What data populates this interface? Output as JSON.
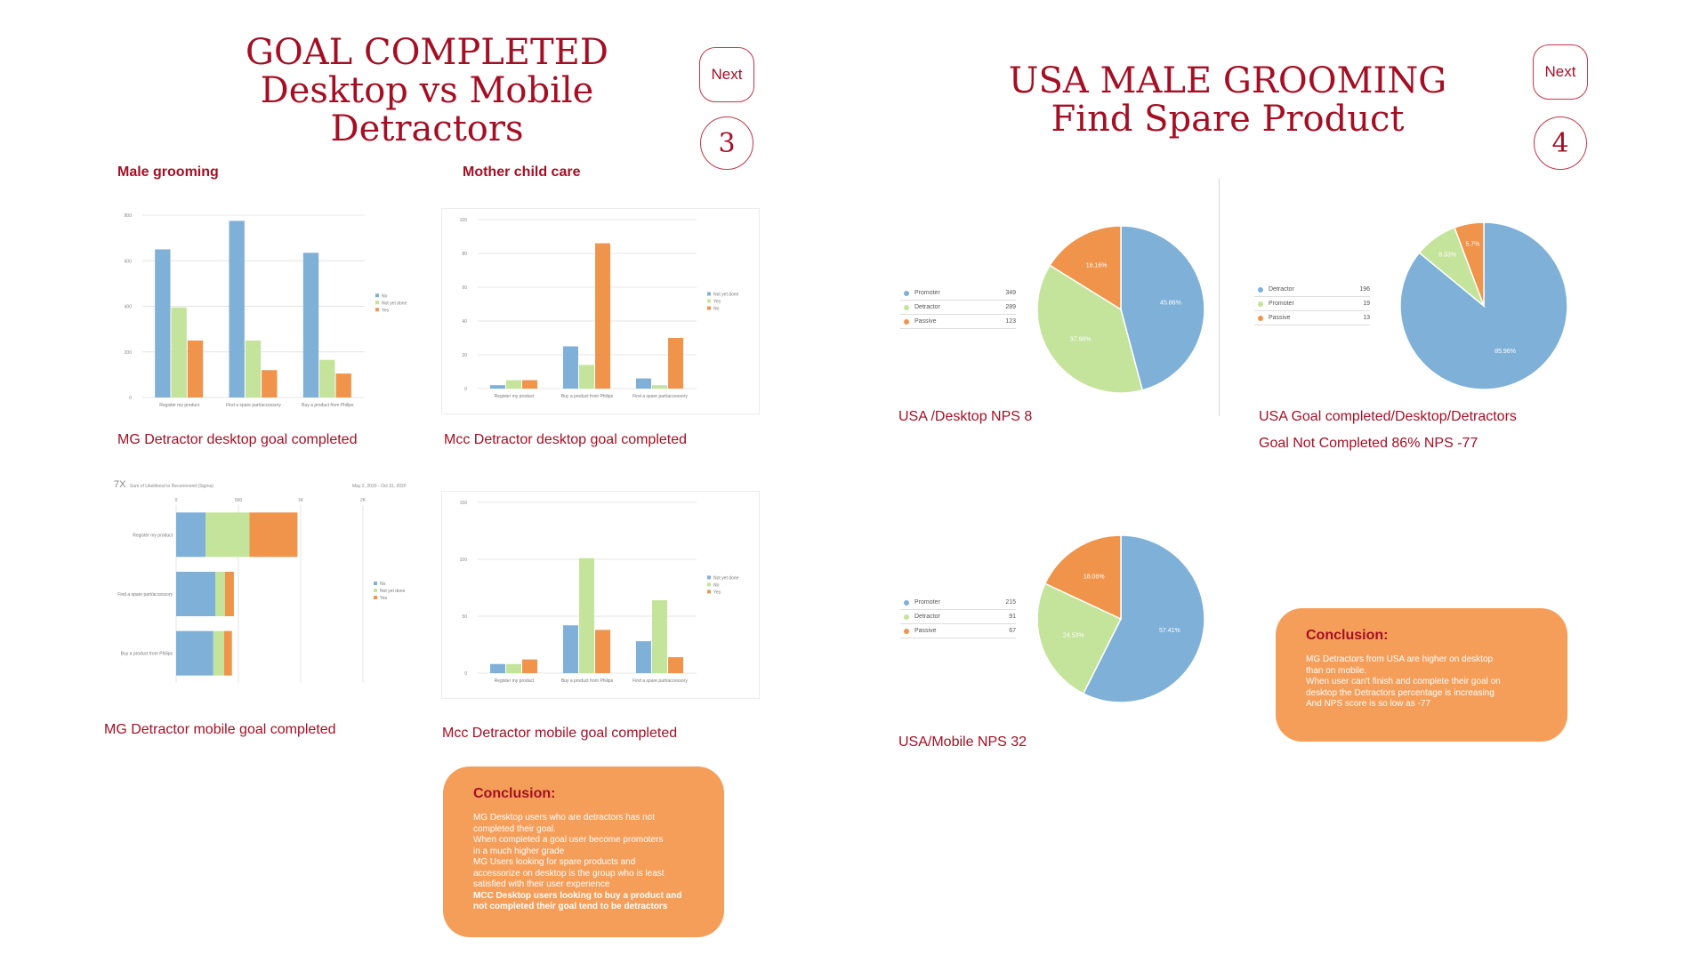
{
  "colors": {
    "blue": "#7fb0d8",
    "green": "#c4e39b",
    "orange": "#f0944b",
    "accent": "#a50f24"
  },
  "left_slide": {
    "title_lines": [
      "GOAL COMPLETED",
      "Desktop vs Mobile",
      "Detractors"
    ],
    "next_label": "Next",
    "page_number": "3",
    "section_male": "Male grooming",
    "section_mcc": "Mother child care",
    "conclusion": {
      "title": "Conclusion:",
      "lines": [
        "MG Desktop users who are detractors has not",
        "completed their goal.",
        "When completed a goal user become promoters",
        "in a much higher grade",
        "MG Users looking for spare products and",
        "accessorize on desktop is the group who is least",
        "satisfied with their user experience"
      ],
      "bold_lines": [
        "MCC Desktop users looking to buy a product and",
        "not completed their goal tend to be detractors"
      ]
    }
  },
  "right_slide": {
    "title_lines": [
      "USA MALE GROOMING",
      "Find Spare Product"
    ],
    "next_label": "Next",
    "page_number": "4",
    "conclusion": {
      "title": "Conclusion:",
      "lines": [
        "MG Detractors from USA are higher on desktop",
        "than on mobile.",
        "When user can't finish and complete their goal on",
        "desktop the Detractors  percentage is  increasing",
        "And NPS score is so low as -77"
      ]
    }
  },
  "chart_data": [
    {
      "type": "bar",
      "caption": "MG Detractor desktop goal completed",
      "categories": [
        "Register my product",
        "Find a spare part/accessory",
        "Buy a product from Philips"
      ],
      "series": [
        {
          "name": "No",
          "values": [
            650,
            775,
            635
          ]
        },
        {
          "name": "Not yet done",
          "values": [
            395,
            250,
            165
          ]
        },
        {
          "name": "Yes",
          "values": [
            250,
            120,
            105
          ]
        }
      ],
      "ylim": [
        0,
        800
      ],
      "yticks": [
        "0",
        "200",
        "400",
        "600",
        "800"
      ]
    },
    {
      "type": "bar",
      "caption": "Mcc Detractor desktop goal completed",
      "categories": [
        "Register my product",
        "Buy a product from Philips",
        "Find a spare part/accessory"
      ],
      "series": [
        {
          "name": "Not yet done",
          "values": [
            2,
            25,
            6
          ]
        },
        {
          "name": "Yes",
          "values": [
            5,
            14,
            2
          ]
        },
        {
          "name": "No",
          "values": [
            5,
            86,
            30
          ]
        }
      ],
      "ylim": [
        0,
        100
      ],
      "yticks": [
        "0",
        "20",
        "40",
        "60",
        "80",
        "100"
      ]
    },
    {
      "type": "bar-horizontal-stacked",
      "caption": "MG Detractor mobile goal completed",
      "header_left": "Sum of Likelihood to Recommend (Sigma)",
      "header_right": "May 2, 2020 - Oct 31, 2020",
      "categories": [
        "Register my product",
        "Find a spare part/accessory",
        "Buy a product from Philips"
      ],
      "series": [
        {
          "name": "No",
          "values": [
            3,
            4,
            3.8
          ]
        },
        {
          "name": "Not yet done",
          "values": [
            4.5,
            1,
            1.1
          ]
        },
        {
          "name": "Yes",
          "values": [
            4.9,
            0.9,
            0.8
          ]
        }
      ],
      "xlim": [
        0,
        2000
      ],
      "xticks": [
        "0",
        "500",
        "1K",
        "2K"
      ]
    },
    {
      "type": "bar",
      "caption": "Mcc Detractor mobile goal completed",
      "categories": [
        "Register my product",
        "Buy a product from Philips",
        "Find a spare part/accessory"
      ],
      "series": [
        {
          "name": "Not yet done",
          "values": [
            8,
            42,
            28
          ]
        },
        {
          "name": "No",
          "values": [
            8,
            101,
            64
          ]
        },
        {
          "name": "Yes",
          "values": [
            12,
            38,
            14
          ]
        }
      ],
      "ylim": [
        0,
        150
      ],
      "yticks": [
        "0",
        "50",
        "100",
        "150"
      ]
    },
    {
      "type": "pie",
      "caption": "USA /Desktop NPS  8",
      "legend": [
        {
          "name": "Promoter",
          "value": "349"
        },
        {
          "name": "Detractor",
          "value": "289"
        },
        {
          "name": "Passive",
          "value": "123"
        }
      ],
      "slices": [
        {
          "label": "45.86%",
          "value": 45.86,
          "color": "#7fb0d8"
        },
        {
          "label": "37.98%",
          "value": 37.98,
          "color": "#c4e39b"
        },
        {
          "label": "16.16%",
          "value": 16.16,
          "color": "#f0944b"
        }
      ]
    },
    {
      "type": "pie",
      "caption": "USA Goal completed/Desktop/Detractors",
      "caption2": "Goal Not Completed  86% NPS   -77",
      "legend": [
        {
          "name": "Detractor",
          "value": "196"
        },
        {
          "name": "Promoter",
          "value": "19"
        },
        {
          "name": "Passive",
          "value": "13"
        }
      ],
      "slices": [
        {
          "label": "85.96%",
          "value": 85.96,
          "color": "#7fb0d8"
        },
        {
          "label": "8.33%",
          "value": 8.33,
          "color": "#c4e39b"
        },
        {
          "label": "5.7%",
          "value": 5.7,
          "color": "#f0944b"
        }
      ]
    },
    {
      "type": "pie",
      "caption": "USA/Mobile  NPS 32",
      "legend": [
        {
          "name": "Promoter",
          "value": "215"
        },
        {
          "name": "Detractor",
          "value": "91"
        },
        {
          "name": "Passive",
          "value": "67"
        }
      ],
      "slices": [
        {
          "label": "57.41%",
          "value": 57.41,
          "color": "#7fb0d8"
        },
        {
          "label": "24.53%",
          "value": 24.53,
          "color": "#c4e39b"
        },
        {
          "label": "18.06%",
          "value": 18.06,
          "color": "#f0944b"
        }
      ]
    }
  ]
}
